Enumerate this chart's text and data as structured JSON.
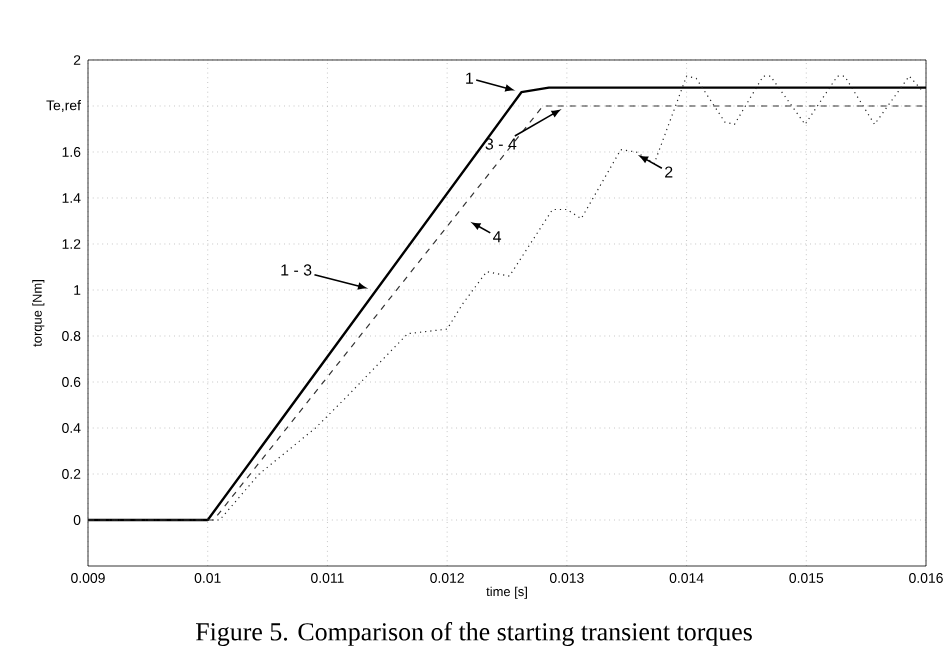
{
  "chart_data": {
    "type": "line",
    "xlabel": "time [s]",
    "ylabel": "torque [Nm]",
    "xlim": [
      0.009,
      0.016
    ],
    "ylim": [
      -0.2,
      2
    ],
    "xticks": [
      0.009,
      0.01,
      0.011,
      0.012,
      0.013,
      0.014,
      0.015,
      0.016
    ],
    "yticks": [
      0,
      0.2,
      0.4,
      0.6,
      0.8,
      1,
      1.2,
      1.4,
      1.6,
      {
        "value": 1.8,
        "label": "Te,ref"
      },
      2
    ],
    "grid": true,
    "marker": "none",
    "series": [
      {
        "color": "#000000",
        "line_style": "solid",
        "x": [
          0.009,
          0.01,
          0.01262,
          0.01285,
          0.016
        ],
        "values": [
          0,
          0,
          1.86,
          1.88,
          1.88
        ]
      },
      {
        "color": "#333333",
        "line_style": "dashed",
        "x": [
          0.009,
          0.01005,
          0.0128,
          0.016
        ],
        "values": [
          0,
          0,
          1.8,
          1.8
        ]
      },
      {
        "color": "#222222",
        "line_style": "dotted",
        "x": [
          0.009,
          0.0101,
          0.01043,
          0.0109,
          0.01115,
          0.01167,
          0.012,
          0.01213,
          0.01233,
          0.01252,
          0.01288,
          0.013,
          0.01312,
          0.01345,
          0.01358,
          0.01373,
          0.014,
          0.01408,
          0.01432,
          0.0144,
          0.01464,
          0.0147,
          0.01499,
          0.01526,
          0.01532,
          0.01557,
          0.01586,
          0.01598
        ],
        "values": [
          0,
          0,
          0.2,
          0.4,
          0.53,
          0.81,
          0.83,
          0.94,
          1.08,
          1.06,
          1.35,
          1.35,
          1.31,
          1.61,
          1.6,
          1.55,
          1.93,
          1.92,
          1.73,
          1.72,
          1.93,
          1.93,
          1.72,
          1.93,
          1.93,
          1.72,
          1.93,
          1.86
        ]
      }
    ],
    "annotations": [
      {
        "text": "1",
        "x": 0.01262,
        "y": 1.86
      },
      {
        "text": "3 - 4",
        "x": 0.013,
        "y": 1.8
      },
      {
        "text": "2",
        "x": 0.01355,
        "y": 1.6
      },
      {
        "text": "4",
        "x": 0.01215,
        "y": 1.31
      },
      {
        "text": "1 - 3",
        "x": 0.01139,
        "y": 1.0
      },
      "Figure 5. Comparison of the starting transient torques"
    ]
  }
}
